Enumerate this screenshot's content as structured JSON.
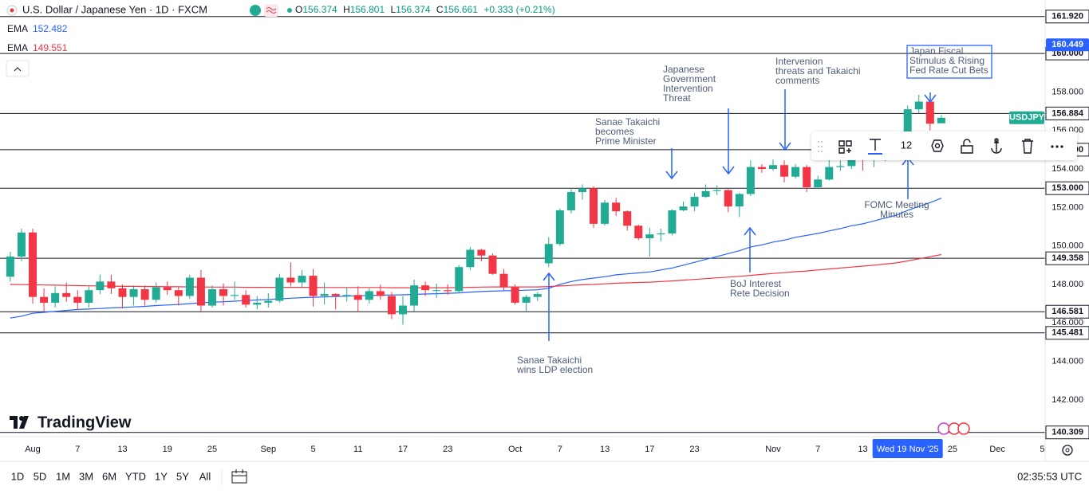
{
  "chart_data": {
    "type": "candlestick",
    "title": "U.S. Dollar / Japanese Yen · 1D · FXCM",
    "symbol": "USDJPY",
    "header_labels": [
      "O",
      "H",
      "L",
      "C"
    ],
    "change": "+0.333 (+0.21%)",
    "up_color": "#22ab94",
    "down_color": "#f23645",
    "categories": [
      null,
      null,
      "Aug",
      null,
      null,
      null,
      "7",
      null,
      null,
      null,
      "13",
      null,
      null,
      null,
      "19",
      null,
      null,
      null,
      "25",
      null,
      null,
      null,
      null,
      "Sep",
      null,
      null,
      null,
      "5",
      null,
      null,
      null,
      "11",
      null,
      null,
      null,
      "17",
      null,
      null,
      null,
      "23",
      null,
      null,
      null,
      null,
      null,
      "Oct",
      null,
      null,
      null,
      "7",
      null,
      null,
      null,
      "13",
      null,
      null,
      null,
      "17",
      null,
      null,
      null,
      "23",
      null,
      null,
      null,
      null,
      null,
      null,
      "Nov",
      null,
      null,
      null,
      "7",
      null,
      null,
      null,
      "13",
      null,
      null,
      null,
      "Wed 19 Nov '25",
      null,
      null,
      null,
      "25",
      null,
      null,
      null,
      "Dec",
      null,
      null,
      null,
      "5"
    ],
    "open": [
      148.4,
      149.45,
      150.7,
      147.35,
      147.05,
      147.55,
      147.35,
      147.05,
      147.7,
      148.15,
      147.8,
      147.35,
      147.75,
      147.2,
      147.85,
      147.7,
      147.4,
      148.35,
      146.9,
      147.75,
      147.4,
      147.45,
      146.95,
      147.05,
      147.15,
      148.35,
      148.1,
      148.45,
      147.4,
      147.5,
      147.4,
      147.45,
      147.2,
      147.65,
      147.4,
      146.45,
      146.9,
      147.95,
      147.7,
      147.7,
      147.65,
      148.9,
      149.8,
      149.5,
      148.55,
      147.85,
      147.05,
      147.35,
      149.1,
      150.1,
      151.85,
      152.8,
      153.0,
      151.15,
      152.25,
      151.8,
      151.05,
      150.4,
      150.6,
      150.65,
      151.85,
      152.05,
      152.55,
      152.85,
      152.9,
      152.05,
      152.7,
      154.1,
      154.0,
      154.2,
      153.6,
      154.1,
      153.05,
      153.45,
      154.1,
      154.15,
      154.8,
      154.55,
      154.55,
      155.2,
      155.5,
      157.1,
      157.5,
      156.374,
      null,
      null,
      null,
      null,
      null,
      null,
      null,
      null,
      null
    ],
    "high": [
      149.7,
      150.9,
      150.9,
      147.8,
      147.9,
      148.1,
      147.7,
      147.9,
      148.5,
      148.5,
      148.0,
      147.95,
      147.95,
      148.1,
      148.15,
      147.85,
      148.5,
      148.75,
      147.95,
      148.05,
      148.15,
      147.7,
      147.4,
      147.55,
      148.55,
      149.15,
      148.75,
      148.8,
      148.1,
      147.55,
      147.85,
      147.9,
      147.8,
      148.0,
      147.6,
      147.4,
      148.25,
      148.15,
      148.05,
      148.0,
      149.0,
      149.95,
      149.85,
      149.6,
      148.8,
      148.0,
      147.45,
      147.6,
      150.45,
      151.95,
      152.95,
      153.2,
      153.1,
      152.4,
      152.5,
      151.85,
      151.1,
      150.95,
      150.9,
      151.9,
      152.3,
      152.75,
      153.2,
      153.15,
      152.95,
      152.75,
      154.45,
      154.25,
      154.5,
      154.45,
      154.25,
      154.2,
      153.65,
      154.5,
      154.45,
      155.05,
      155.0,
      154.8,
      155.3,
      155.7,
      157.3,
      157.85,
      157.75,
      156.801,
      null,
      null,
      null,
      null,
      null,
      null,
      null,
      null,
      null
    ],
    "low": [
      148.15,
      149.2,
      147.0,
      146.6,
      146.8,
      147.1,
      146.7,
      146.8,
      147.5,
      147.5,
      146.75,
      146.9,
      146.9,
      147.05,
      147.45,
      146.9,
      147.25,
      146.6,
      146.8,
      146.9,
      147.2,
      146.8,
      146.7,
      146.8,
      147.05,
      147.9,
      147.8,
      146.85,
      146.95,
      146.7,
      147.1,
      146.55,
      147.0,
      147.2,
      146.2,
      145.9,
      146.6,
      147.4,
      147.3,
      147.45,
      147.55,
      148.75,
      149.2,
      148.5,
      147.7,
      146.95,
      146.6,
      147.15,
      148.9,
      150.0,
      151.7,
      152.4,
      150.95,
      151.05,
      151.55,
      150.8,
      150.3,
      149.45,
      150.25,
      150.55,
      151.8,
      151.8,
      152.5,
      152.65,
      151.75,
      151.5,
      152.6,
      153.8,
      153.9,
      153.3,
      153.5,
      152.8,
      152.95,
      153.4,
      153.9,
      154.0,
      153.9,
      154.1,
      154.4,
      154.95,
      155.4,
      156.9,
      156.0,
      156.374,
      null,
      null,
      null,
      null,
      null,
      null,
      null,
      null,
      null
    ],
    "close": [
      149.45,
      150.7,
      147.35,
      147.05,
      147.55,
      147.35,
      147.05,
      147.7,
      148.15,
      147.8,
      147.35,
      147.75,
      147.2,
      147.85,
      147.7,
      147.4,
      148.35,
      146.9,
      147.75,
      147.4,
      147.45,
      146.95,
      147.05,
      147.15,
      148.35,
      148.1,
      148.45,
      147.4,
      147.5,
      147.4,
      147.45,
      147.2,
      147.65,
      147.4,
      146.45,
      146.9,
      147.95,
      147.7,
      147.7,
      147.65,
      148.9,
      149.8,
      149.5,
      148.55,
      147.85,
      147.05,
      147.35,
      147.5,
      150.1,
      151.85,
      152.8,
      153.0,
      151.15,
      152.25,
      151.8,
      151.05,
      150.4,
      150.6,
      150.65,
      151.85,
      152.05,
      152.55,
      152.85,
      152.9,
      152.05,
      152.7,
      154.1,
      154.0,
      154.2,
      153.6,
      154.1,
      153.05,
      153.45,
      154.1,
      154.15,
      154.8,
      154.55,
      154.55,
      155.2,
      155.5,
      157.1,
      157.5,
      156.35,
      156.661,
      null,
      null,
      null,
      null,
      null,
      null,
      null,
      null,
      null
    ],
    "series": [
      {
        "name": "EMA",
        "color": "#2962ff",
        "values": [
          146.25,
          146.35,
          146.5,
          146.55,
          146.6,
          146.65,
          146.7,
          146.72,
          146.75,
          146.78,
          146.8,
          146.83,
          146.86,
          146.9,
          146.93,
          146.96,
          147.0,
          147.05,
          147.07,
          147.1,
          147.13,
          147.16,
          147.19,
          147.22,
          147.25,
          147.28,
          147.31,
          147.33,
          147.35,
          147.37,
          147.39,
          147.41,
          147.43,
          147.44,
          147.45,
          147.46,
          147.48,
          147.5,
          147.52,
          147.54,
          147.56,
          147.6,
          147.63,
          147.65,
          147.67,
          147.68,
          147.7,
          147.72,
          147.8,
          148.0,
          148.15,
          148.25,
          148.33,
          148.4,
          148.5,
          148.55,
          148.6,
          148.65,
          148.75,
          148.85,
          149.0,
          149.15,
          149.3,
          149.45,
          149.6,
          149.75,
          149.95,
          150.05,
          150.2,
          150.3,
          150.45,
          150.55,
          150.65,
          150.78,
          150.9,
          151.05,
          151.15,
          151.3,
          151.45,
          151.6,
          151.85,
          152.05,
          152.25,
          152.482,
          null,
          null,
          null,
          null,
          null,
          null,
          null,
          null,
          null
        ]
      },
      {
        "name": "EMA",
        "color": "#f23645",
        "values": [
          148.0,
          147.99,
          147.98,
          147.97,
          147.96,
          147.95,
          147.94,
          147.93,
          147.92,
          147.91,
          147.9,
          147.9,
          147.89,
          147.89,
          147.88,
          147.88,
          147.87,
          147.87,
          147.86,
          147.86,
          147.86,
          147.85,
          147.85,
          147.85,
          147.85,
          147.85,
          147.85,
          147.85,
          147.84,
          147.84,
          147.84,
          147.84,
          147.84,
          147.84,
          147.83,
          147.83,
          147.83,
          147.83,
          147.83,
          147.83,
          147.84,
          147.85,
          147.86,
          147.87,
          147.87,
          147.87,
          147.87,
          147.87,
          147.89,
          147.92,
          147.95,
          147.98,
          148.0,
          148.03,
          148.06,
          148.08,
          148.1,
          148.12,
          148.15,
          148.18,
          148.22,
          148.26,
          148.3,
          148.34,
          148.38,
          148.42,
          148.47,
          148.52,
          148.57,
          148.61,
          148.66,
          148.7,
          148.75,
          148.8,
          148.85,
          148.9,
          148.95,
          149.0,
          149.06,
          149.12,
          149.22,
          149.33,
          149.44,
          149.551,
          null,
          null,
          null,
          null,
          null,
          null,
          null,
          null,
          null
        ]
      }
    ],
    "ylim": [
      140.09,
      162.78
    ],
    "yticks": [
      {
        "value": 142,
        "label": "142.000"
      },
      {
        "value": 144,
        "label": "144.000"
      },
      {
        "value": 146,
        "label": "146.000"
      },
      {
        "value": 148,
        "label": "148.000"
      },
      {
        "value": 150,
        "label": "150.000"
      },
      {
        "value": 152,
        "label": "152.000"
      },
      {
        "value": 154,
        "label": "154.000"
      },
      {
        "value": 156,
        "label": "156.000"
      },
      {
        "value": 158,
        "label": "158.000"
      }
    ],
    "grid": false,
    "hlines": [
      {
        "value": 161.92,
        "label": "161.920"
      },
      {
        "value": 160,
        "label": "160.000"
      },
      {
        "value": 156.884,
        "label": "156.884"
      },
      {
        "value": 155,
        "label": "155.000"
      },
      {
        "value": 153,
        "label": "153.000"
      },
      {
        "value": 149.358,
        "label": "149.358"
      },
      {
        "value": 146.581,
        "label": "146.581"
      },
      {
        "value": 145.481,
        "label": "145.481"
      },
      {
        "value": 140.309,
        "label": "140.309"
      }
    ],
    "price_tags": [
      {
        "value": 160.449,
        "label": "160.449",
        "color": "#2962ff"
      }
    ],
    "annotations": [
      {
        "lines": [
          "Sanae Takaichi",
          "wins LDP election"
        ]
      },
      {
        "lines": [
          "Sanae Takaichi",
          "becomes",
          "Prime Minister"
        ]
      },
      {
        "lines": [
          "Japanese",
          "Government",
          "Intervention",
          "Threat"
        ]
      },
      {
        "lines": [
          "Intervenion",
          "threats and Takaichi",
          "comments"
        ]
      },
      {
        "lines": [
          "Japan Fiscal",
          "Stimulus & Rising",
          "Fed Rate Cut Bets"
        ]
      },
      {
        "lines": [
          "FOMC Meeting",
          "Minutes"
        ]
      },
      {
        "lines": [
          "BoJ Interest",
          "Rete Decision"
        ]
      }
    ]
  },
  "brand": "TradingView",
  "toolbar": {
    "text_size": "12"
  },
  "timeframes": [
    "1D",
    "5D",
    "1M",
    "3M",
    "6M",
    "YTD",
    "1Y",
    "5Y",
    "All"
  ],
  "clock": "02:35:53 UTC"
}
